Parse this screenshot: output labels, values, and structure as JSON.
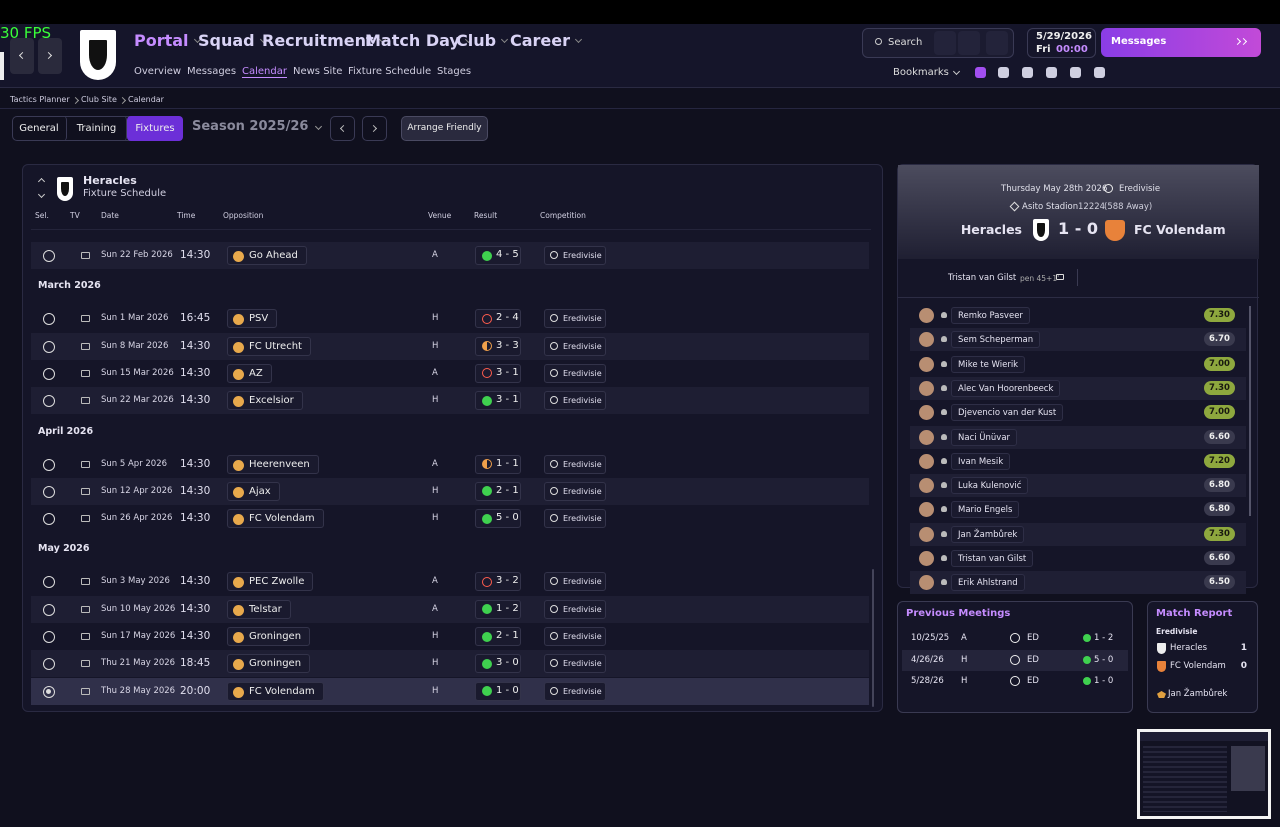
{
  "fps": "30 FPS",
  "nav": {
    "main": [
      "Portal",
      "Squad",
      "Recruitment",
      "Match Day",
      "Club",
      "Career"
    ],
    "sub": [
      "Overview",
      "Messages",
      "Calendar",
      "News Site",
      "Fixture Schedule",
      "Stages"
    ],
    "search": "Search",
    "date": "5/29/2026",
    "day": "Fri",
    "time": "00:00",
    "messages": "Messages",
    "bookmarks": "Bookmarks"
  },
  "breadcrumb": [
    "Tactics Planner",
    "Club Site",
    "Calendar"
  ],
  "toolbar": {
    "tabs": [
      "General",
      "Training",
      "Fixtures"
    ],
    "season": "Season 2025/26",
    "arrange": "Arrange Friendly"
  },
  "schedule": {
    "club": "Heracles",
    "subtitle": "Fixture Schedule",
    "columns": [
      "Sel.",
      "TV",
      "Date",
      "Time",
      "Opposition",
      "Venue",
      "Result",
      "Competition"
    ],
    "marker_colors": {
      "filled": "#3fd14f",
      "ring": "#ff5c4d",
      "half": "#f0a04b"
    },
    "groups": [
      {
        "rows": [
          {
            "date": "Sun 22 Feb 2026",
            "time": "14:30",
            "opponent": "Go Ahead",
            "venue": "A",
            "result": "4 - 5",
            "competition": "Eredivisie",
            "marker": "filled"
          }
        ]
      },
      {
        "month": "March 2026",
        "rows": [
          {
            "date": "Sun 1 Mar 2026",
            "time": "16:45",
            "opponent": "PSV",
            "venue": "H",
            "result": "2 - 4",
            "competition": "Eredivisie",
            "marker": "ring"
          },
          {
            "date": "Sun 8 Mar 2026",
            "time": "14:30",
            "opponent": "FC Utrecht",
            "venue": "H",
            "result": "3 - 3",
            "competition": "Eredivisie",
            "marker": "half"
          },
          {
            "date": "Sun 15 Mar 2026",
            "time": "14:30",
            "opponent": "AZ",
            "venue": "A",
            "result": "3 - 1",
            "competition": "Eredivisie",
            "marker": "ring"
          },
          {
            "date": "Sun 22 Mar 2026",
            "time": "14:30",
            "opponent": "Excelsior",
            "venue": "H",
            "result": "3 - 1",
            "competition": "Eredivisie",
            "marker": "filled"
          }
        ]
      },
      {
        "month": "April 2026",
        "rows": [
          {
            "date": "Sun 5 Apr 2026",
            "time": "14:30",
            "opponent": "Heerenveen",
            "venue": "A",
            "result": "1 - 1",
            "competition": "Eredivisie",
            "marker": "half"
          },
          {
            "date": "Sun 12 Apr 2026",
            "time": "14:30",
            "opponent": "Ajax",
            "venue": "H",
            "result": "2 - 1",
            "competition": "Eredivisie",
            "marker": "filled"
          },
          {
            "date": "Sun 26 Apr 2026",
            "time": "14:30",
            "opponent": "FC Volendam",
            "venue": "H",
            "result": "5 - 0",
            "competition": "Eredivisie",
            "marker": "filled"
          }
        ]
      },
      {
        "month": "May 2026",
        "rows": [
          {
            "date": "Sun 3 May 2026",
            "time": "14:30",
            "opponent": "PEC Zwolle",
            "venue": "A",
            "result": "3 - 2",
            "competition": "Eredivisie",
            "marker": "ring"
          },
          {
            "date": "Sun 10 May 2026",
            "time": "14:30",
            "opponent": "Telstar",
            "venue": "A",
            "result": "1 - 2",
            "competition": "Eredivisie",
            "marker": "filled"
          },
          {
            "date": "Sun 17 May 2026",
            "time": "14:30",
            "opponent": "Groningen",
            "venue": "H",
            "result": "2 - 1",
            "competition": "Eredivisie",
            "marker": "filled"
          },
          {
            "date": "Thu 21 May 2026",
            "time": "18:45",
            "opponent": "Groningen",
            "venue": "H",
            "result": "3 - 0",
            "competition": "Eredivisie",
            "marker": "filled"
          },
          {
            "date": "Thu 28 May 2026",
            "time": "20:00",
            "opponent": "FC Volendam",
            "venue": "H",
            "result": "1 - 0",
            "competition": "Eredivisie",
            "marker": "filled"
          }
        ]
      }
    ]
  },
  "match": {
    "date": "Thursday May 28th 2026",
    "competition": "Eredivisie",
    "stadium": "Asito Stadion",
    "attendance": "12224",
    "away_fans": "(588 Away)",
    "home": "Heracles",
    "score": "1 - 0",
    "away": "FC Volendam",
    "scorer": "Tristan van Gilst",
    "goal_detail": "pen 45+1'",
    "players": [
      {
        "name": "Remko Pasveer",
        "rating": "7.30"
      },
      {
        "name": "Sem Scheperman",
        "rating": "6.70"
      },
      {
        "name": "Mike te Wierik",
        "rating": "7.00"
      },
      {
        "name": "Alec Van Hoorenbeeck",
        "rating": "7.30"
      },
      {
        "name": "Djevencio van der Kust",
        "rating": "7.00"
      },
      {
        "name": "Naci Ünüvar",
        "rating": "6.60"
      },
      {
        "name": "Ivan Mesik",
        "rating": "7.20"
      },
      {
        "name": "Luka Kulenović",
        "rating": "6.80"
      },
      {
        "name": "Mario Engels",
        "rating": "6.80"
      },
      {
        "name": "Jan Žambůrek",
        "rating": "7.30"
      },
      {
        "name": "Tristan van Gilst",
        "rating": "6.60"
      },
      {
        "name": "Erik Ahlstrand",
        "rating": "6.50"
      }
    ]
  },
  "previous_meetings": {
    "title": "Previous Meetings",
    "rows": [
      {
        "date": "10/25/25",
        "venue": "A",
        "competition": "ED",
        "result": "1 - 2",
        "marker": "filled"
      },
      {
        "date": "4/26/26",
        "venue": "H",
        "competition": "ED",
        "result": "5 - 0",
        "marker": "filled"
      },
      {
        "date": "5/28/26",
        "venue": "H",
        "competition": "ED",
        "result": "1 - 0",
        "marker": "filled"
      }
    ]
  },
  "match_report": {
    "title": "Match Report",
    "competition": "Eredivisie",
    "teams": [
      {
        "name": "Heracles",
        "goals": "1"
      },
      {
        "name": "FC Volendam",
        "goals": "0"
      }
    ],
    "player_of_match": "Jan Žambůrek"
  }
}
